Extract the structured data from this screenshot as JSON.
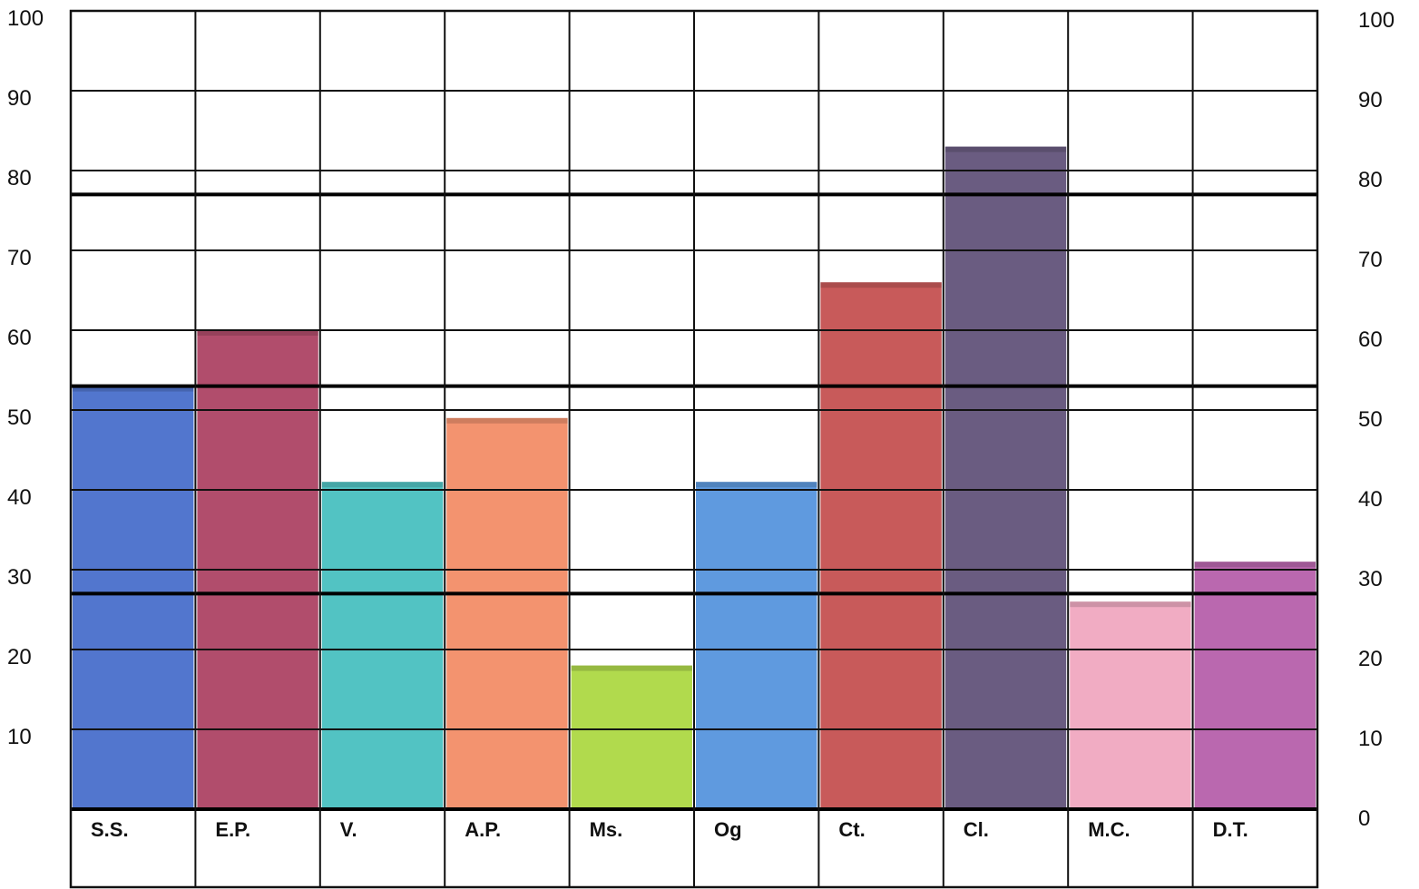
{
  "chart_data": {
    "type": "bar",
    "title": "",
    "xlabel": "",
    "ylabel": "",
    "categories": [
      "S.S.",
      "E.P.",
      "V.",
      "A.P.",
      "Ms.",
      "Og",
      "Ct.",
      "Cl.",
      "M.C.",
      "D.T."
    ],
    "values": [
      53,
      60,
      41,
      49,
      18,
      41,
      66,
      83,
      26,
      31
    ],
    "colors": [
      "#3f67c9",
      "#a83a5c",
      "#3fbcbc",
      "#f2875f",
      "#a9d63a",
      "#4e8fdb",
      "#c24848",
      "#5a4a73",
      "#f0a3bd",
      "#b358a6"
    ],
    "ylim": [
      0,
      100
    ],
    "y_ticks_left": [
      "100",
      "90",
      "80",
      "70",
      "60",
      "50",
      "40",
      "30",
      "20",
      "10"
    ],
    "y_ticks_right": [
      "100",
      "90",
      "80",
      "70",
      "60",
      "50",
      "40",
      "30",
      "20",
      "10",
      "0"
    ],
    "grid": true,
    "legend": "none"
  }
}
